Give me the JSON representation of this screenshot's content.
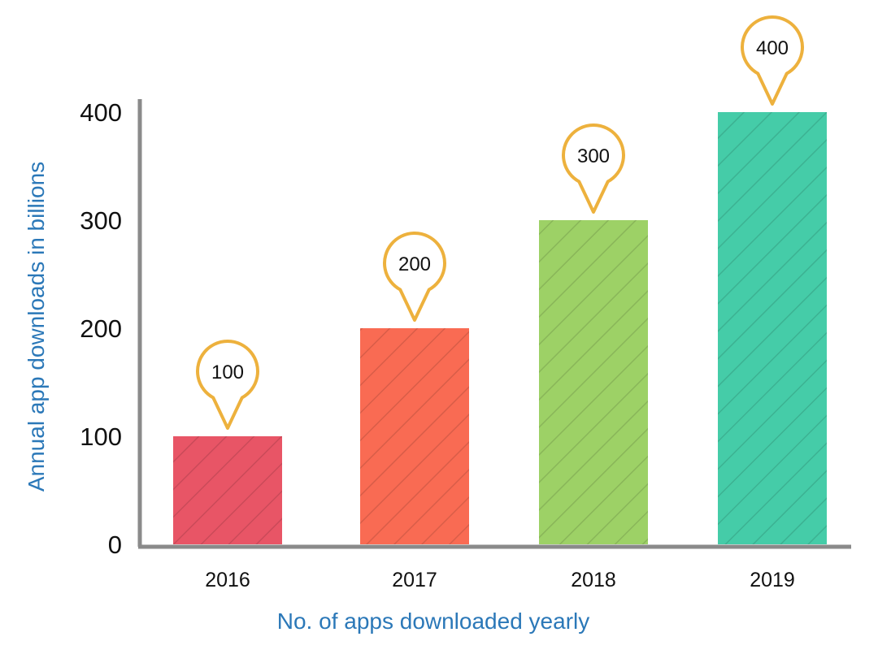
{
  "chart_data": {
    "type": "bar",
    "title": "",
    "categories": [
      "2016",
      "2017",
      "2018",
      "2019"
    ],
    "values": [
      100,
      200,
      300,
      400
    ],
    "data_labels": [
      "100",
      "200",
      "300",
      "400"
    ],
    "xlabel": "No. of apps downloaded yearly",
    "ylabel": "Annual app downloads in billions",
    "ylim": [
      0,
      400
    ],
    "yticks": [
      "0",
      "100",
      "200",
      "300",
      "400"
    ],
    "grid": false,
    "bar_colors": [
      "#e85566",
      "#f96b53",
      "#9dd166",
      "#45cca8"
    ],
    "callout_color": "#edb13d",
    "axis_title_color": "#2b78b8"
  }
}
